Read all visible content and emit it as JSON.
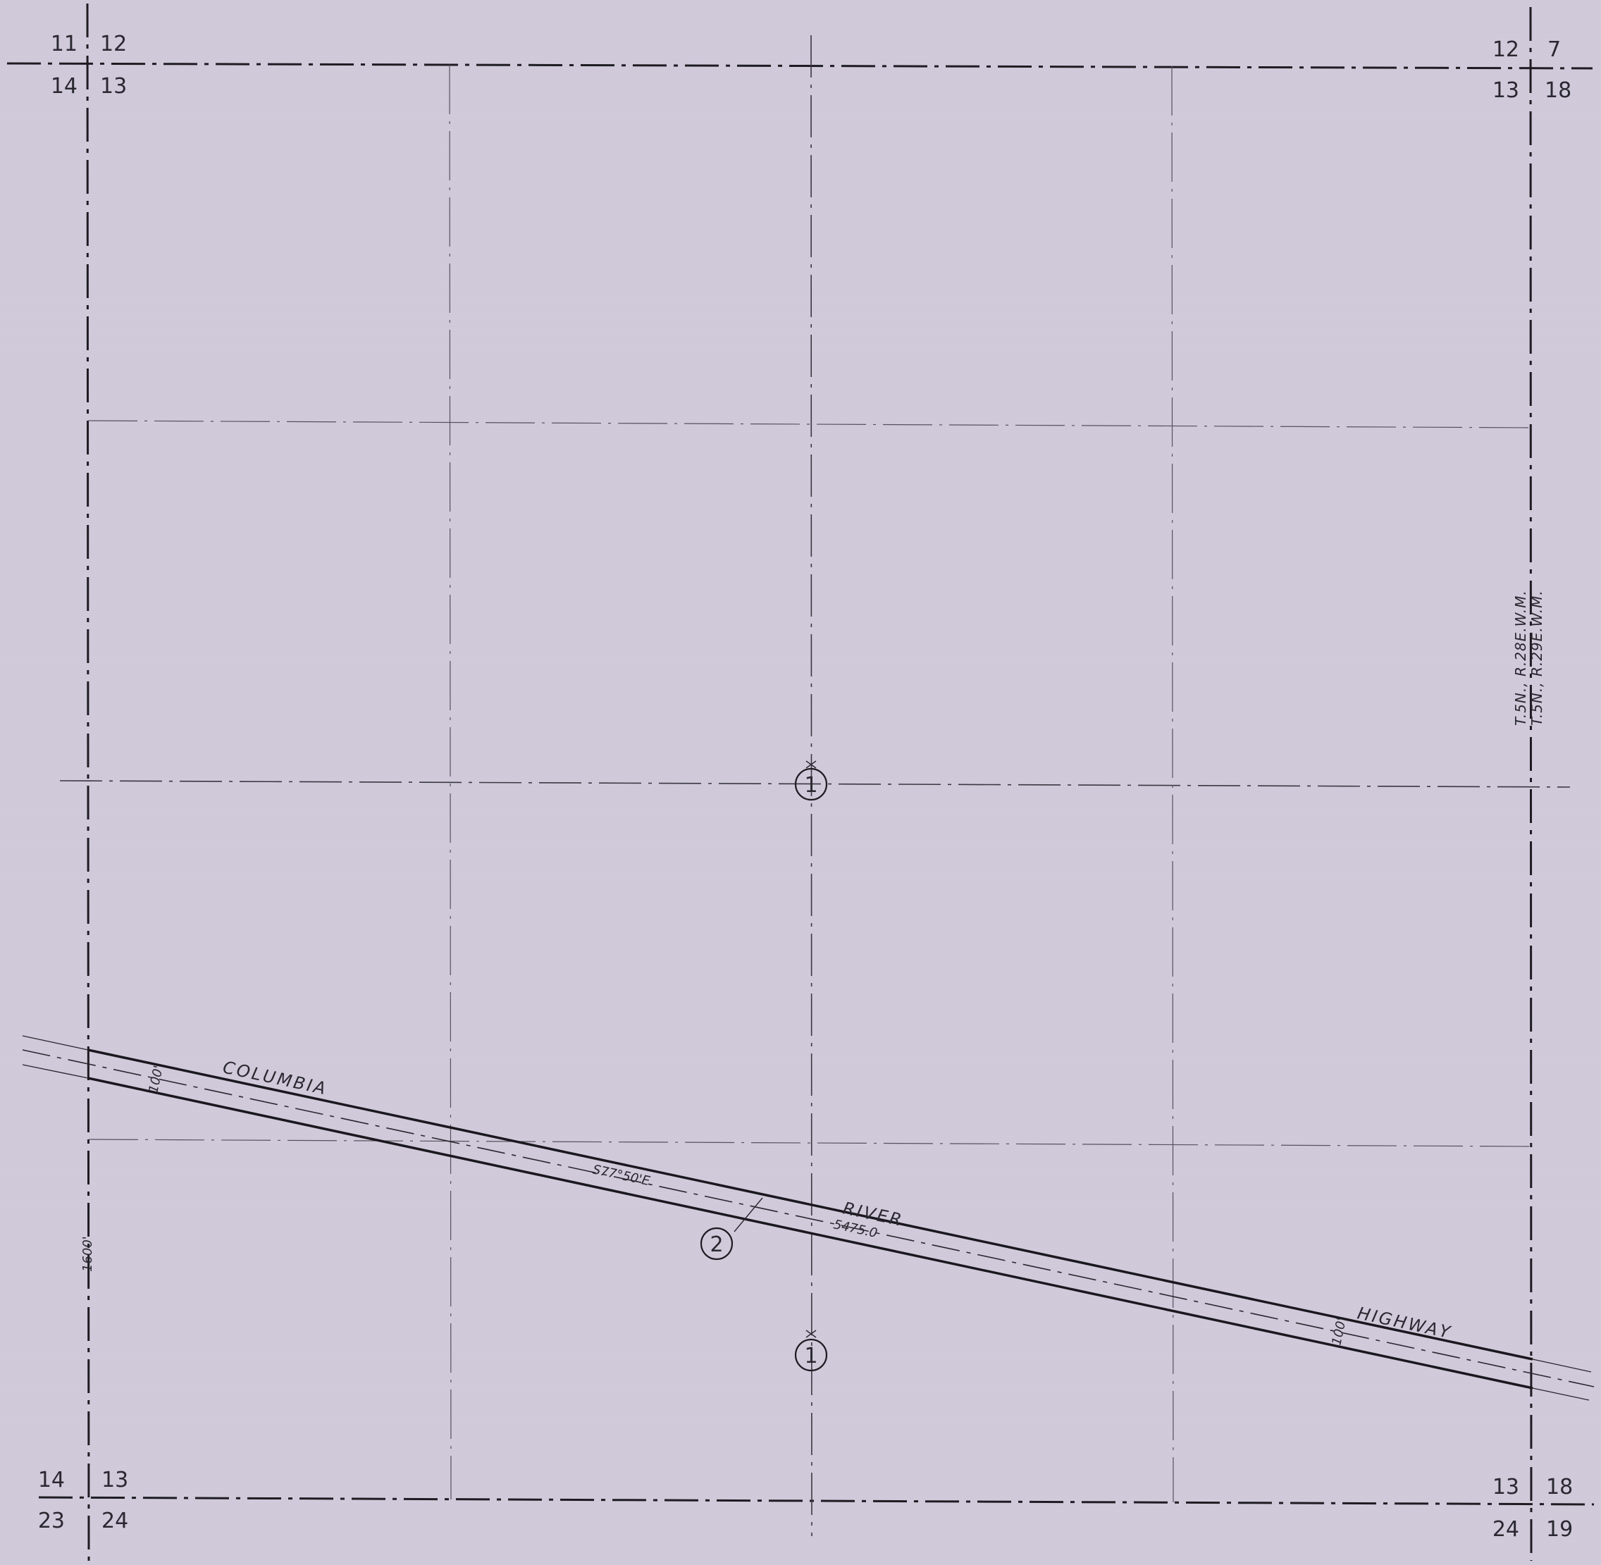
{
  "corners": {
    "top_left": {
      "upper_left": "11",
      "upper_right": "12",
      "lower_left": "14",
      "lower_right": "13"
    },
    "top_right": {
      "upper_left": "12",
      "upper_right": "7",
      "lower_left": "13",
      "lower_right": "18"
    },
    "bottom_left": {
      "upper_left": "14",
      "upper_right": "13",
      "lower_left": "23",
      "lower_right": "24"
    },
    "bottom_right": {
      "upper_left": "13",
      "upper_right": "18",
      "lower_left": "24",
      "lower_right": "19"
    }
  },
  "road": {
    "name_words": [
      "COLUMBIA",
      "RIVER",
      "HIGHWAY"
    ],
    "bearing": "S77°50'E",
    "distance": "5475.0",
    "width_label_west": "100'",
    "width_label_east": "100'"
  },
  "offset_label": "1600'",
  "markers": [
    {
      "label": "1",
      "name": "marker-1-center"
    },
    {
      "label": "1",
      "name": "marker-1-south"
    },
    {
      "label": "2",
      "name": "marker-2-road"
    }
  ],
  "township": {
    "line1": "T.5N., R.28E.W.M.",
    "line2": "T.5N., R.29E.W.M."
  }
}
